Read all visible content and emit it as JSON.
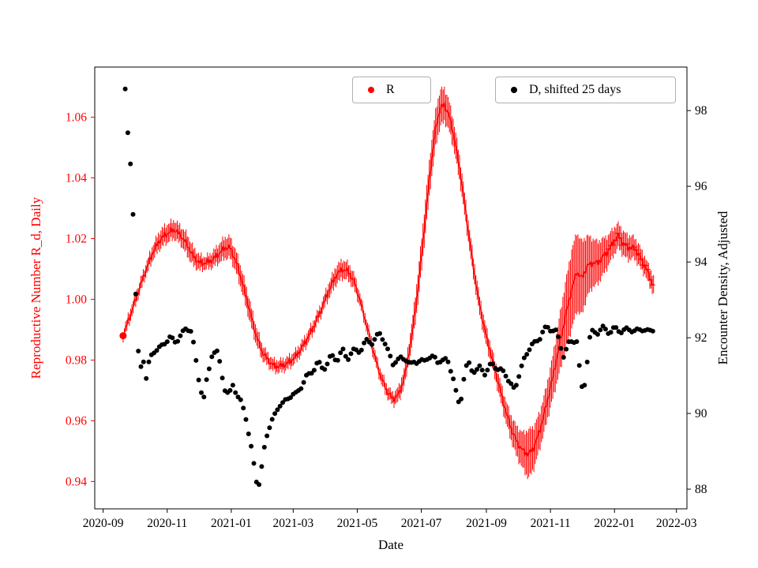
{
  "chart_data": {
    "type": "line",
    "title": "",
    "xlabel": "Date",
    "ylabel_left": "Reproductive Number R_d, Daily",
    "ylabel_right": "Encounter Density, Adjusted",
    "x_unit": "days since 2020-09-01",
    "xlim_days": [
      -8,
      556
    ],
    "ylim_left": [
      0.931,
      1.0765
    ],
    "ylim_right": [
      87.48,
      99.15
    ],
    "x_ticks": [
      "2020-09",
      "2020-11",
      "2021-01",
      "2021-03",
      "2021-05",
      "2021-07",
      "2021-09",
      "2021-11",
      "2022-01",
      "2022-03"
    ],
    "x_tick_days": [
      0,
      61,
      122,
      181,
      242,
      303,
      365,
      426,
      487,
      546
    ],
    "y_ticks_left_labels": [
      "0.94",
      "0.96",
      "0.98",
      "1.00",
      "1.02",
      "1.04",
      "1.06"
    ],
    "y_ticks_left_values": [
      0.94,
      0.96,
      0.98,
      1.0,
      1.02,
      1.04,
      1.06
    ],
    "y_ticks_right_labels": [
      "88",
      "90",
      "92",
      "94",
      "96",
      "98"
    ],
    "y_ticks_right_values": [
      88,
      90,
      92,
      94,
      96,
      98
    ],
    "legend": [
      {
        "label": "R",
        "marker_color": "#ff0000"
      },
      {
        "label": "D, shifted 25 days",
        "marker_color": "#000000"
      }
    ],
    "legend_position": "top",
    "grid": false,
    "series": [
      {
        "name": "R",
        "axis": "left",
        "style": "errorbar-line",
        "color": "#ff0000",
        "points_format": [
          "day",
          "value",
          "error"
        ],
        "plus_marker_after_day": 479,
        "points": [
          [
            19,
            0.988,
            0.0015
          ],
          [
            25,
            0.994,
            0.002
          ],
          [
            32,
            1.001,
            0.002
          ],
          [
            40,
            1.009,
            0.002
          ],
          [
            48,
            1.016,
            0.0025
          ],
          [
            55,
            1.02,
            0.003
          ],
          [
            62,
            1.022,
            0.003
          ],
          [
            68,
            1.023,
            0.003
          ],
          [
            74,
            1.021,
            0.003
          ],
          [
            80,
            1.018,
            0.0035
          ],
          [
            86,
            1.014,
            0.003
          ],
          [
            92,
            1.012,
            0.0025
          ],
          [
            98,
            1.012,
            0.002
          ],
          [
            104,
            1.013,
            0.0025
          ],
          [
            110,
            1.015,
            0.003
          ],
          [
            116,
            1.017,
            0.0035
          ],
          [
            121,
            1.017,
            0.0035
          ],
          [
            127,
            1.012,
            0.0035
          ],
          [
            133,
            1.005,
            0.0035
          ],
          [
            139,
            0.997,
            0.0035
          ],
          [
            145,
            0.989,
            0.003
          ],
          [
            151,
            0.983,
            0.0025
          ],
          [
            157,
            0.98,
            0.002
          ],
          [
            163,
            0.978,
            0.002
          ],
          [
            169,
            0.978,
            0.002
          ],
          [
            176,
            0.979,
            0.002
          ],
          [
            183,
            0.981,
            0.002
          ],
          [
            191,
            0.985,
            0.002
          ],
          [
            199,
            0.99,
            0.002
          ],
          [
            207,
            0.996,
            0.002
          ],
          [
            215,
            1.003,
            0.0025
          ],
          [
            222,
            1.008,
            0.003
          ],
          [
            228,
            1.01,
            0.003
          ],
          [
            234,
            1.009,
            0.0028
          ],
          [
            240,
            1.005,
            0.0025
          ],
          [
            246,
            0.998,
            0.002
          ],
          [
            252,
            0.99,
            0.002
          ],
          [
            258,
            0.982,
            0.002
          ],
          [
            264,
            0.975,
            0.002
          ],
          [
            270,
            0.97,
            0.002
          ],
          [
            276,
            0.967,
            0.002
          ],
          [
            282,
            0.969,
            0.0025
          ],
          [
            288,
            0.976,
            0.003
          ],
          [
            294,
            0.988,
            0.004
          ],
          [
            300,
            1.004,
            0.005
          ],
          [
            306,
            1.024,
            0.0055
          ],
          [
            312,
            1.044,
            0.006
          ],
          [
            317,
            1.057,
            0.006
          ],
          [
            321,
            1.063,
            0.006
          ],
          [
            325,
            1.064,
            0.0055
          ],
          [
            329,
            1.061,
            0.005
          ],
          [
            334,
            1.054,
            0.0045
          ],
          [
            340,
            1.042,
            0.004
          ],
          [
            346,
            1.027,
            0.0035
          ],
          [
            352,
            1.012,
            0.0035
          ],
          [
            358,
            0.999,
            0.003
          ],
          [
            364,
            0.989,
            0.003
          ],
          [
            370,
            0.981,
            0.003
          ],
          [
            376,
            0.973,
            0.003
          ],
          [
            382,
            0.965,
            0.0035
          ],
          [
            388,
            0.958,
            0.004
          ],
          [
            394,
            0.953,
            0.005
          ],
          [
            400,
            0.95,
            0.006
          ],
          [
            405,
            0.949,
            0.008
          ],
          [
            410,
            0.951,
            0.007
          ],
          [
            416,
            0.957,
            0.006
          ],
          [
            422,
            0.965,
            0.006
          ],
          [
            428,
            0.974,
            0.007
          ],
          [
            434,
            0.984,
            0.009
          ],
          [
            440,
            0.994,
            0.011
          ],
          [
            446,
            1.003,
            0.013
          ],
          [
            451,
            1.009,
            0.013
          ],
          [
            456,
            1.007,
            0.012
          ],
          [
            461,
            1.011,
            0.01
          ],
          [
            466,
            1.012,
            0.008
          ],
          [
            471,
            1.012,
            0.007
          ],
          [
            476,
            1.014,
            0.006
          ],
          [
            481,
            1.016,
            0.005
          ],
          [
            486,
            1.019,
            0.0045
          ],
          [
            491,
            1.021,
            0.004
          ],
          [
            496,
            1.018,
            0.004
          ],
          [
            501,
            1.017,
            0.004
          ],
          [
            506,
            1.017,
            0.0035
          ],
          [
            511,
            1.014,
            0.0035
          ],
          [
            516,
            1.011,
            0.003
          ],
          [
            521,
            1.007,
            0.003
          ],
          [
            525,
            1.004,
            0.003
          ]
        ]
      },
      {
        "name": "D, shifted 25 days",
        "axis": "right",
        "style": "scatter",
        "color": "#000000",
        "points_format": [
          "day",
          "value"
        ],
        "points": [
          [
            21,
            98.6
          ],
          [
            23,
            97.5
          ],
          [
            25,
            96.9
          ],
          [
            27,
            96.2
          ],
          [
            30,
            94.4
          ],
          [
            32,
            92.0
          ],
          [
            34,
            91.5
          ],
          [
            36,
            91.2
          ],
          [
            38,
            91.6
          ],
          [
            40,
            90.7
          ],
          [
            42,
            91.2
          ],
          [
            45,
            91.5
          ],
          [
            48,
            91.6
          ],
          [
            52,
            91.7
          ],
          [
            56,
            91.8
          ],
          [
            60,
            91.9
          ],
          [
            64,
            92.0
          ],
          [
            68,
            91.9
          ],
          [
            72,
            92.0
          ],
          [
            76,
            92.1
          ],
          [
            80,
            92.3
          ],
          [
            84,
            92.2
          ],
          [
            88,
            91.4
          ],
          [
            92,
            90.8
          ],
          [
            96,
            90.4
          ],
          [
            100,
            91.0
          ],
          [
            104,
            91.7
          ],
          [
            108,
            91.6
          ],
          [
            112,
            91.2
          ],
          [
            116,
            90.7
          ],
          [
            120,
            90.4
          ],
          [
            124,
            90.8
          ],
          [
            128,
            90.5
          ],
          [
            132,
            90.2
          ],
          [
            136,
            89.9
          ],
          [
            140,
            89.3
          ],
          [
            143,
            88.7
          ],
          [
            146,
            88.2
          ],
          [
            148,
            88.1
          ],
          [
            150,
            88.4
          ],
          [
            153,
            89.0
          ],
          [
            156,
            89.4
          ],
          [
            160,
            89.8
          ],
          [
            164,
            90.0
          ],
          [
            168,
            90.2
          ],
          [
            172,
            90.3
          ],
          [
            176,
            90.4
          ],
          [
            180,
            90.5
          ],
          [
            184,
            90.5
          ],
          [
            188,
            90.7
          ],
          [
            192,
            90.9
          ],
          [
            196,
            91.0
          ],
          [
            200,
            91.2
          ],
          [
            204,
            91.3
          ],
          [
            208,
            91.2
          ],
          [
            212,
            91.3
          ],
          [
            216,
            91.4
          ],
          [
            220,
            91.5
          ],
          [
            224,
            91.5
          ],
          [
            228,
            91.6
          ],
          [
            232,
            91.5
          ],
          [
            236,
            91.6
          ],
          [
            240,
            91.6
          ],
          [
            244,
            91.7
          ],
          [
            248,
            91.8
          ],
          [
            252,
            91.9
          ],
          [
            256,
            91.9
          ],
          [
            260,
            92.0
          ],
          [
            264,
            92.1
          ],
          [
            268,
            91.9
          ],
          [
            272,
            91.6
          ],
          [
            276,
            91.3
          ],
          [
            280,
            91.4
          ],
          [
            284,
            91.5
          ],
          [
            288,
            91.4
          ],
          [
            292,
            91.3
          ],
          [
            296,
            91.4
          ],
          [
            300,
            91.3
          ],
          [
            304,
            91.4
          ],
          [
            308,
            91.5
          ],
          [
            312,
            91.4
          ],
          [
            316,
            91.5
          ],
          [
            320,
            91.4
          ],
          [
            324,
            91.3
          ],
          [
            328,
            91.5
          ],
          [
            332,
            91.1
          ],
          [
            335,
            90.6
          ],
          [
            338,
            90.3
          ],
          [
            341,
            90.5
          ],
          [
            344,
            91.0
          ],
          [
            348,
            91.3
          ],
          [
            352,
            91.2
          ],
          [
            356,
            91.1
          ],
          [
            360,
            91.2
          ],
          [
            364,
            91.1
          ],
          [
            368,
            91.2
          ],
          [
            372,
            91.3
          ],
          [
            376,
            91.2
          ],
          [
            380,
            91.1
          ],
          [
            384,
            91.0
          ],
          [
            388,
            90.8
          ],
          [
            392,
            90.6
          ],
          [
            396,
            91.0
          ],
          [
            400,
            91.4
          ],
          [
            404,
            91.6
          ],
          [
            408,
            91.8
          ],
          [
            412,
            91.9
          ],
          [
            416,
            92.0
          ],
          [
            420,
            92.2
          ],
          [
            424,
            92.3
          ],
          [
            428,
            92.2
          ],
          [
            432,
            92.1
          ],
          [
            436,
            91.8
          ],
          [
            439,
            91.5
          ],
          [
            442,
            91.7
          ],
          [
            445,
            91.9
          ],
          [
            448,
            92.0
          ],
          [
            451,
            91.9
          ],
          [
            454,
            91.0
          ],
          [
            457,
            90.5
          ],
          [
            460,
            91.2
          ],
          [
            463,
            91.9
          ],
          [
            466,
            92.1
          ],
          [
            469,
            92.2
          ],
          [
            472,
            92.2
          ],
          [
            476,
            92.2
          ],
          [
            480,
            92.2
          ],
          [
            484,
            92.2
          ],
          [
            488,
            92.2
          ],
          [
            492,
            92.2
          ],
          [
            496,
            92.2
          ],
          [
            500,
            92.2
          ],
          [
            504,
            92.2
          ],
          [
            508,
            92.2
          ],
          [
            512,
            92.2
          ],
          [
            516,
            92.2
          ],
          [
            520,
            92.2
          ],
          [
            524,
            92.2
          ]
        ]
      }
    ]
  }
}
